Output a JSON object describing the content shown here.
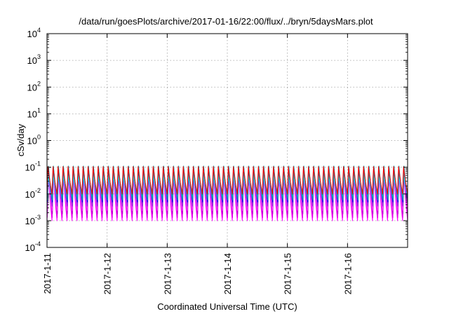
{
  "chart_data": {
    "type": "line",
    "title": "/data/run/goesPlots/archive/2017-01-16/22:00/flux/../bryn/5daysMars.plot",
    "xlabel": "Coordinated Universal Time (UTC)",
    "ylabel": "cSv/day",
    "x_range": [
      "2017-01-11",
      "2017-01-17"
    ],
    "y_scale": "log",
    "ylim": [
      0.0001,
      10000
    ],
    "grid": true,
    "legend": "none",
    "x_ticks": [
      "2017-1-11",
      "2017-1-12",
      "2017-1-13",
      "2017-1-14",
      "2017-1-15",
      "2017-1-16"
    ],
    "y_ticks": [
      {
        "base": "10",
        "exp": "-4",
        "value": 0.0001
      },
      {
        "base": "10",
        "exp": "-3",
        "value": 0.001
      },
      {
        "base": "10",
        "exp": "-2",
        "value": 0.01
      },
      {
        "base": "10",
        "exp": "-1",
        "value": 0.1
      },
      {
        "base": "10",
        "exp": "0",
        "value": 1
      },
      {
        "base": "10",
        "exp": "1",
        "value": 10
      },
      {
        "base": "10",
        "exp": "2",
        "value": 100
      },
      {
        "base": "10",
        "exp": "3",
        "value": 1000
      },
      {
        "base": "10",
        "exp": "4",
        "value": 10000
      }
    ],
    "oscillation": {
      "cycles_per_day": 12,
      "peak_value": 0.13,
      "trough_value": 0.001
    },
    "series": [
      {
        "color": "#ff00ff",
        "peak": 0.1,
        "trough": 0.001
      },
      {
        "color": "#e000e8",
        "peak": 0.09,
        "trough": 0.0013
      },
      {
        "color": "#c000d0",
        "peak": 0.08,
        "trough": 0.0018
      },
      {
        "color": "#ff40ff",
        "peak": 0.07,
        "trough": 0.0024
      },
      {
        "color": "#8a2be2",
        "peak": 0.11,
        "trough": 0.0035
      },
      {
        "color": "#0000ff",
        "peak": 0.12,
        "trough": 0.005
      },
      {
        "color": "#1e90ff",
        "peak": 0.06,
        "trough": 0.0075
      },
      {
        "color": "#00ffff",
        "peak": 0.05,
        "trough": 0.012
      },
      {
        "color": "#00aaaa",
        "peak": 0.13,
        "trough": 0.006
      },
      {
        "color": "#ff0000",
        "peak": 0.12,
        "trough": 0.01
      }
    ]
  }
}
